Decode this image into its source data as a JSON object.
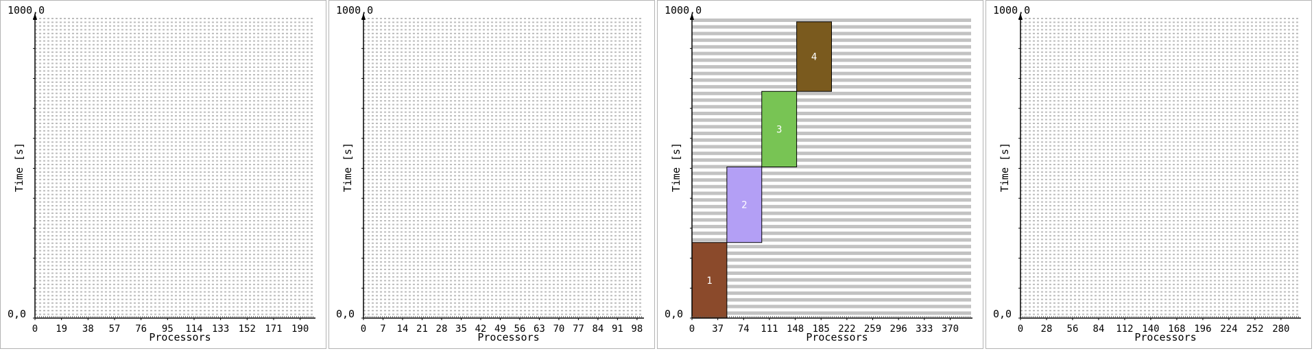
{
  "chart_data": [
    {
      "type": "gantt",
      "ymax_label": "1000,0",
      "ymin_label": "0,0",
      "ylabel": "Time [s]",
      "xlabel": "Processors",
      "ylim": [
        0,
        1000
      ],
      "xlim": [
        0,
        200
      ],
      "xticks": [
        "0",
        "19",
        "38",
        "57",
        "76",
        "95",
        "114",
        "133",
        "152",
        "171",
        "190"
      ],
      "tick_step": 19,
      "grid_rows": 80,
      "grid_style": "light-dashed",
      "tasks": []
    },
    {
      "type": "gantt",
      "ymax_label": "1000,0",
      "ymin_label": "0,0",
      "ylabel": "Time [s]",
      "xlabel": "Processors",
      "ylim": [
        0,
        1000
      ],
      "xlim": [
        0,
        100
      ],
      "xticks": [
        "0",
        "7",
        "14",
        "21",
        "28",
        "35",
        "42",
        "49",
        "56",
        "63",
        "70",
        "77",
        "84",
        "91",
        "98"
      ],
      "tick_step": 7,
      "grid_rows": 80,
      "grid_style": "light-dashed",
      "tasks": []
    },
    {
      "type": "gantt",
      "ymax_label": "1000,0",
      "ymin_label": "0,0",
      "ylabel": "Time [s]",
      "xlabel": "Processors",
      "ylim": [
        0,
        1000
      ],
      "xlim": [
        0,
        400
      ],
      "xticks": [
        "0",
        "37",
        "74",
        "111",
        "148",
        "185",
        "222",
        "259",
        "296",
        "333",
        "370"
      ],
      "tick_step": 37,
      "grid_rows": 45,
      "grid_style": "solid-bands",
      "tasks": [
        {
          "label": "1",
          "x0": 0,
          "x1": 50,
          "y0": 0,
          "y1": 250,
          "color": "#8b4a2b",
          "text_color": "#ffffff"
        },
        {
          "label": "2",
          "x0": 50,
          "x1": 100,
          "y0": 250,
          "y1": 500,
          "color": "#b39ff5",
          "text_color": "#ffffff"
        },
        {
          "label": "3",
          "x0": 100,
          "x1": 150,
          "y0": 500,
          "y1": 750,
          "color": "#78c454",
          "text_color": "#ffffff"
        },
        {
          "label": "4",
          "x0": 150,
          "x1": 200,
          "y0": 750,
          "y1": 980,
          "color": "#7a5a1e",
          "text_color": "#ffffff"
        }
      ]
    },
    {
      "type": "gantt",
      "ymax_label": "1000,0",
      "ymin_label": "0,0",
      "ylabel": "Time [s]",
      "xlabel": "Processors",
      "ylim": [
        0,
        1000
      ],
      "xlim": [
        0,
        300
      ],
      "xticks": [
        "0",
        "28",
        "56",
        "84",
        "112",
        "140",
        "168",
        "196",
        "224",
        "252",
        "280"
      ],
      "tick_step": 28,
      "grid_rows": 80,
      "grid_style": "light-dashed",
      "tasks": []
    }
  ]
}
